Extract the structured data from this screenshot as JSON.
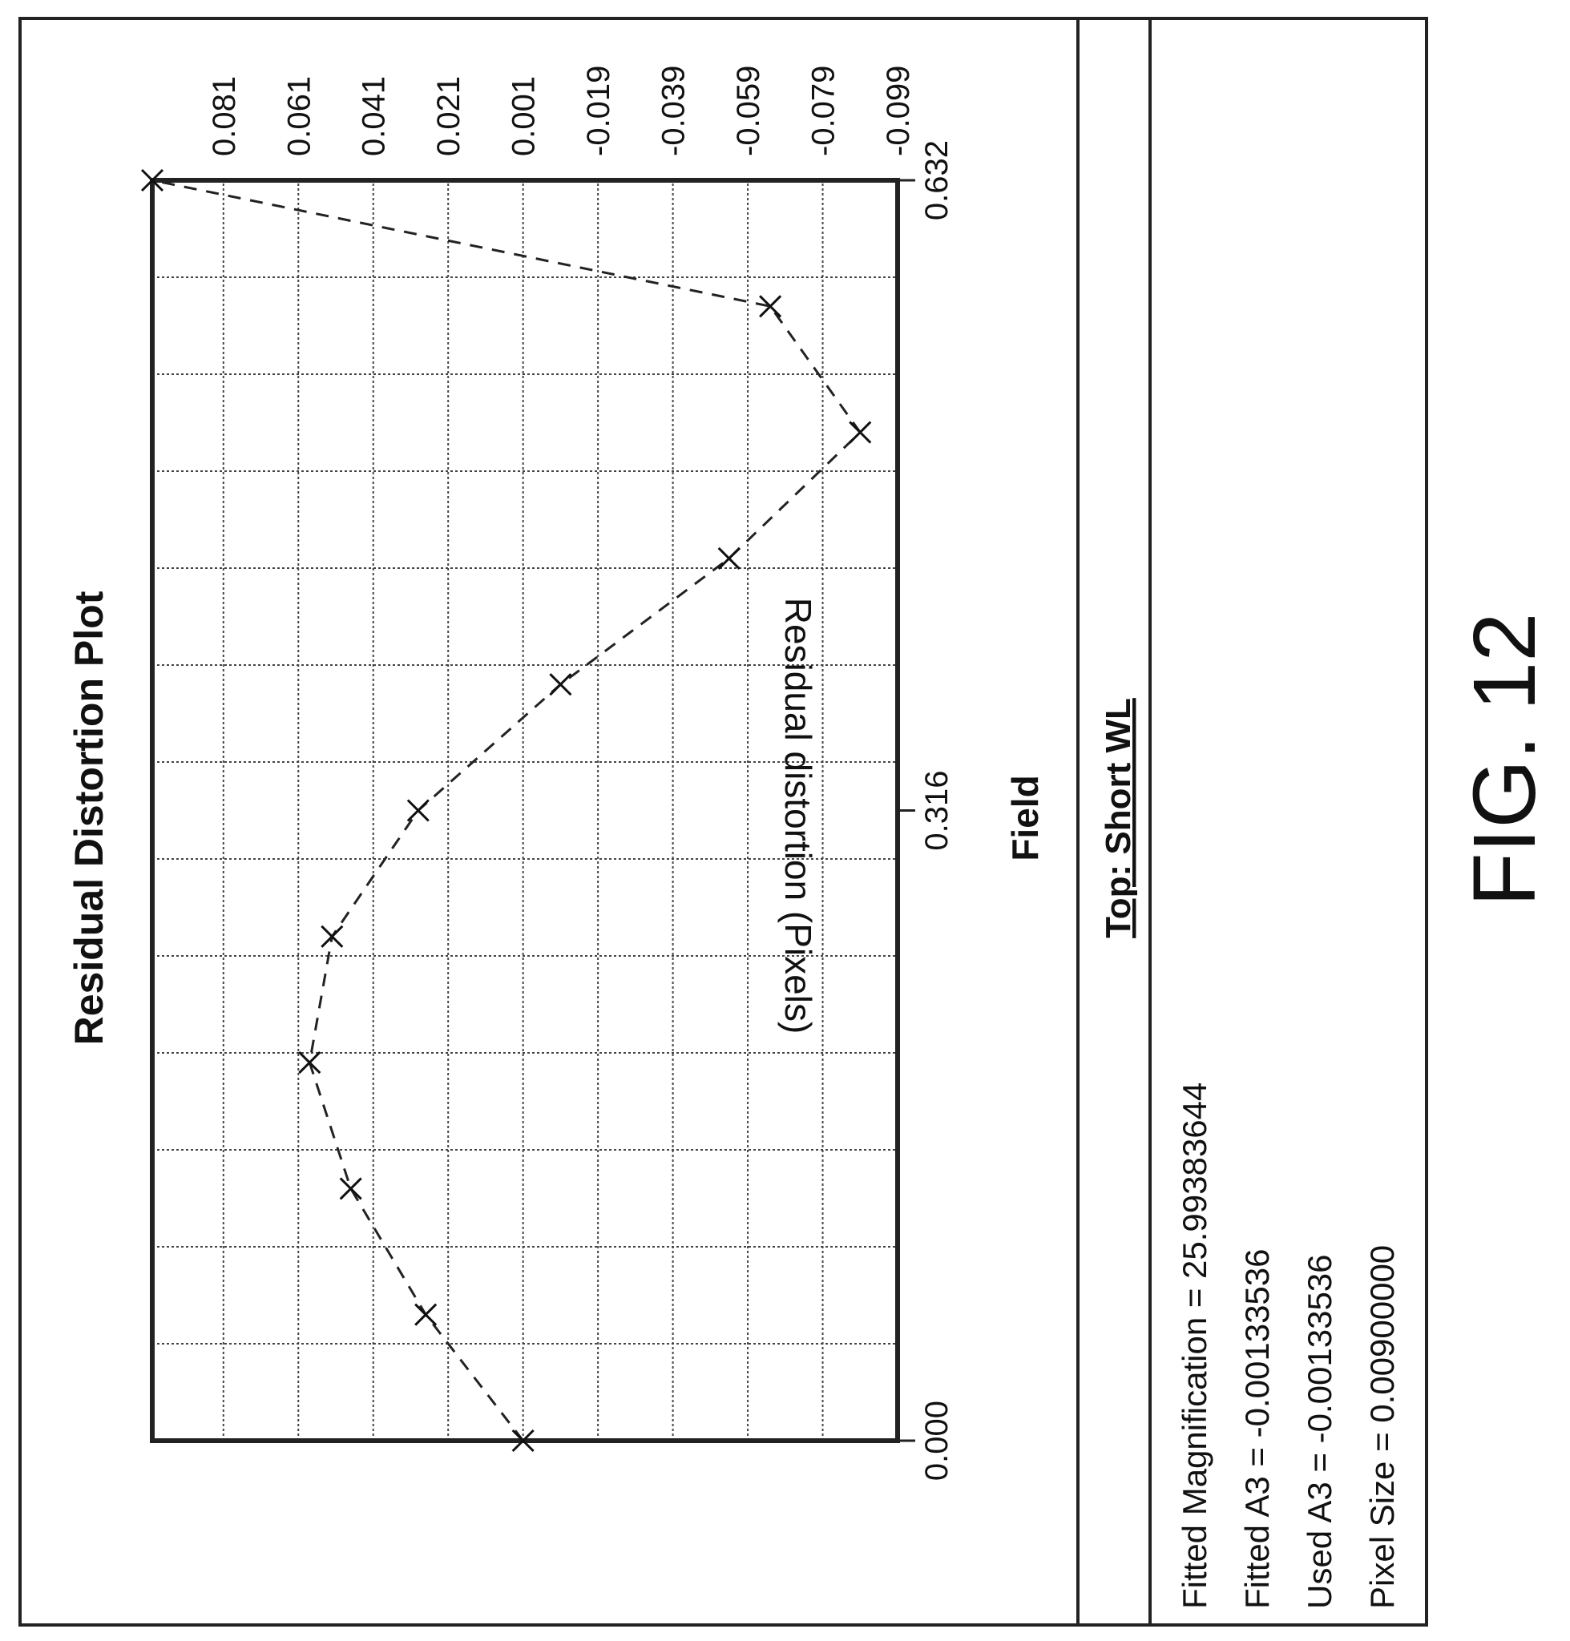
{
  "chart_data": {
    "type": "line",
    "title": "Residual Distortion Plot",
    "xlabel": "Field",
    "ylabel": "Residual distortion (Pixels)",
    "x_ticks": [
      "0.000",
      "0.316",
      "0.632"
    ],
    "y_ticks": [
      "0.081",
      "0.061",
      "0.041",
      "0.021",
      "0.001",
      "-0.019",
      "-0.039",
      "-0.059",
      "-0.079",
      "-0.099"
    ],
    "xlim": [
      0,
      0.632
    ],
    "ylim": [
      -0.099,
      0.1
    ],
    "grid": true,
    "series": [
      {
        "x": [
          0.0,
          0.0632,
          0.1264,
          0.1896,
          0.2528,
          0.316,
          0.3792,
          0.4424,
          0.5056,
          0.5688,
          0.632
        ],
        "y": [
          0.001,
          0.027,
          0.047,
          0.058,
          0.052,
          0.029,
          -0.009,
          -0.054,
          -0.089,
          -0.065,
          0.1
        ]
      }
    ]
  },
  "top_label": "Top: Short WL",
  "info_lines": [
    "Fitted Magnification = 25.99383644",
    "Fitted A3 = -0.00133536",
    "Used A3 = -0.00133536",
    "Pixel Size = 0.00900000"
  ],
  "figure_label": "FIG. 12"
}
